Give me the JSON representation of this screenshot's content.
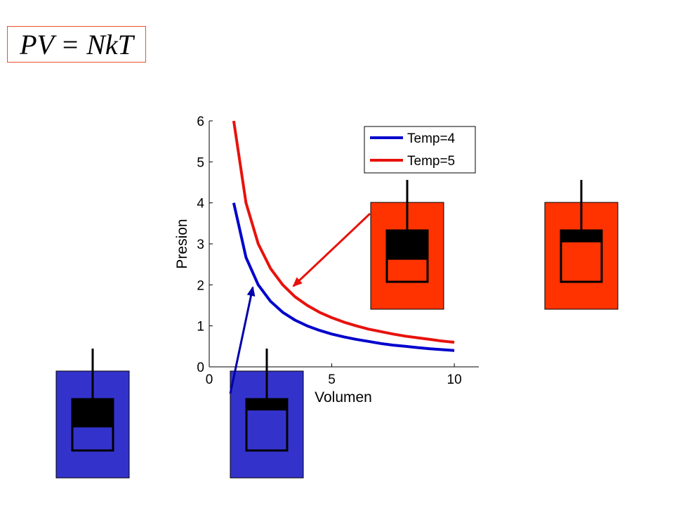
{
  "equation": "PV = NkT",
  "chart_data": {
    "type": "line",
    "xlabel": "Volumen",
    "ylabel": "Presion",
    "xlim": [
      0,
      11
    ],
    "ylim": [
      0,
      6
    ],
    "xticks": [
      0,
      5,
      10
    ],
    "yticks": [
      0,
      1,
      2,
      3,
      4,
      5,
      6
    ],
    "grid": false,
    "legend_position": "top-right",
    "x": [
      1,
      1.5,
      2,
      2.5,
      3,
      3.5,
      4,
      4.5,
      5,
      5.5,
      6,
      6.5,
      7,
      7.5,
      8,
      8.5,
      9,
      9.5,
      10
    ],
    "series": [
      {
        "name": "Temp=4",
        "color": "#0000cc",
        "values": [
          4.0,
          2.67,
          2.0,
          1.6,
          1.33,
          1.14,
          1.0,
          0.89,
          0.8,
          0.73,
          0.67,
          0.62,
          0.57,
          0.53,
          0.5,
          0.47,
          0.44,
          0.42,
          0.4
        ]
      },
      {
        "name": "Temp=5",
        "color": "#e8120c",
        "values": [
          6.0,
          4.0,
          3.0,
          2.4,
          2.0,
          1.71,
          1.5,
          1.33,
          1.2,
          1.09,
          1.0,
          0.92,
          0.86,
          0.8,
          0.75,
          0.71,
          0.67,
          0.63,
          0.6
        ]
      }
    ]
  },
  "colors": {
    "hot": "#ff3300",
    "cold": "#3333cc",
    "ink": "#000000"
  },
  "illustrations": {
    "cylinders": [
      {
        "name": "cold-cylinder-compressed",
        "color": "#3333cc",
        "piston_level": 0.45
      },
      {
        "name": "cold-cylinder-expanded",
        "color": "#3333cc",
        "piston_level": 0.78
      },
      {
        "name": "hot-cylinder-compressed",
        "color": "#ff3300",
        "piston_level": 0.43
      },
      {
        "name": "hot-cylinder-expanded",
        "color": "#ff3300",
        "piston_level": 0.77
      }
    ]
  }
}
